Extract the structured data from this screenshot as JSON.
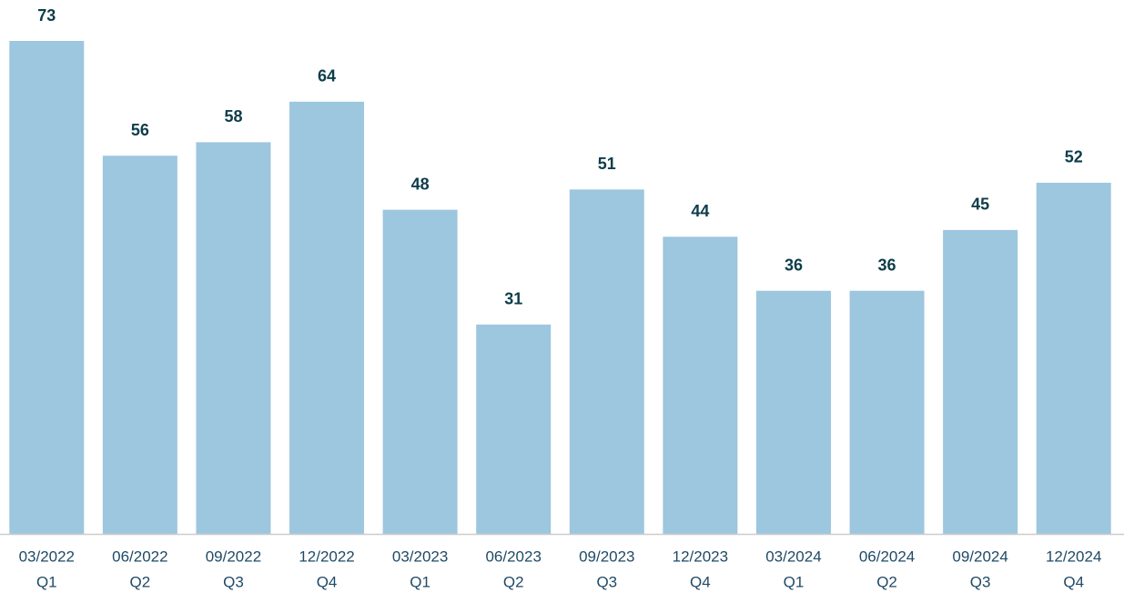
{
  "chart_data": {
    "type": "bar",
    "categories": [
      [
        "03/2022",
        "Q1"
      ],
      [
        "06/2022",
        "Q2"
      ],
      [
        "09/2022",
        "Q3"
      ],
      [
        "12/2022",
        "Q4"
      ],
      [
        "03/2023",
        "Q1"
      ],
      [
        "06/2023",
        "Q2"
      ],
      [
        "09/2023",
        "Q3"
      ],
      [
        "12/2023",
        "Q4"
      ],
      [
        "03/2024",
        "Q1"
      ],
      [
        "06/2024",
        "Q2"
      ],
      [
        "09/2024",
        "Q3"
      ],
      [
        "12/2024",
        "Q4"
      ]
    ],
    "values": [
      73,
      56,
      58,
      64,
      48,
      31,
      51,
      44,
      36,
      36,
      45,
      52
    ],
    "color": "#9dc6df",
    "ylim": [
      0,
      73
    ]
  }
}
